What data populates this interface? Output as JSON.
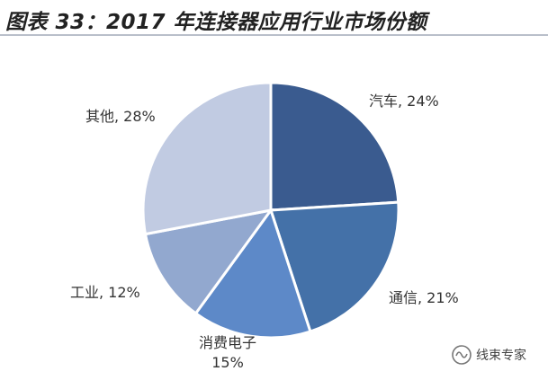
{
  "title": "图表 33：2017 年连接器应用行业市场份额",
  "watermark_text": "线束专家",
  "chart_data": {
    "type": "pie",
    "title": "图表 33：2017 年连接器应用行业市场份额",
    "start_angle_deg": 0,
    "direction": "clockwise",
    "slices": [
      {
        "label": "汽车, 24%",
        "value": 24,
        "color": "#3a5b8f"
      },
      {
        "label": "通信, 21%",
        "value": 21,
        "color": "#4471a8"
      },
      {
        "label": "消费电子, 15%",
        "value": 15,
        "color": "#5d89c8"
      },
      {
        "label": "工业, 12%",
        "value": 12,
        "color": "#92a8cf"
      },
      {
        "label": "其他, 28%",
        "value": 28,
        "color": "#c1cbe2"
      }
    ]
  }
}
